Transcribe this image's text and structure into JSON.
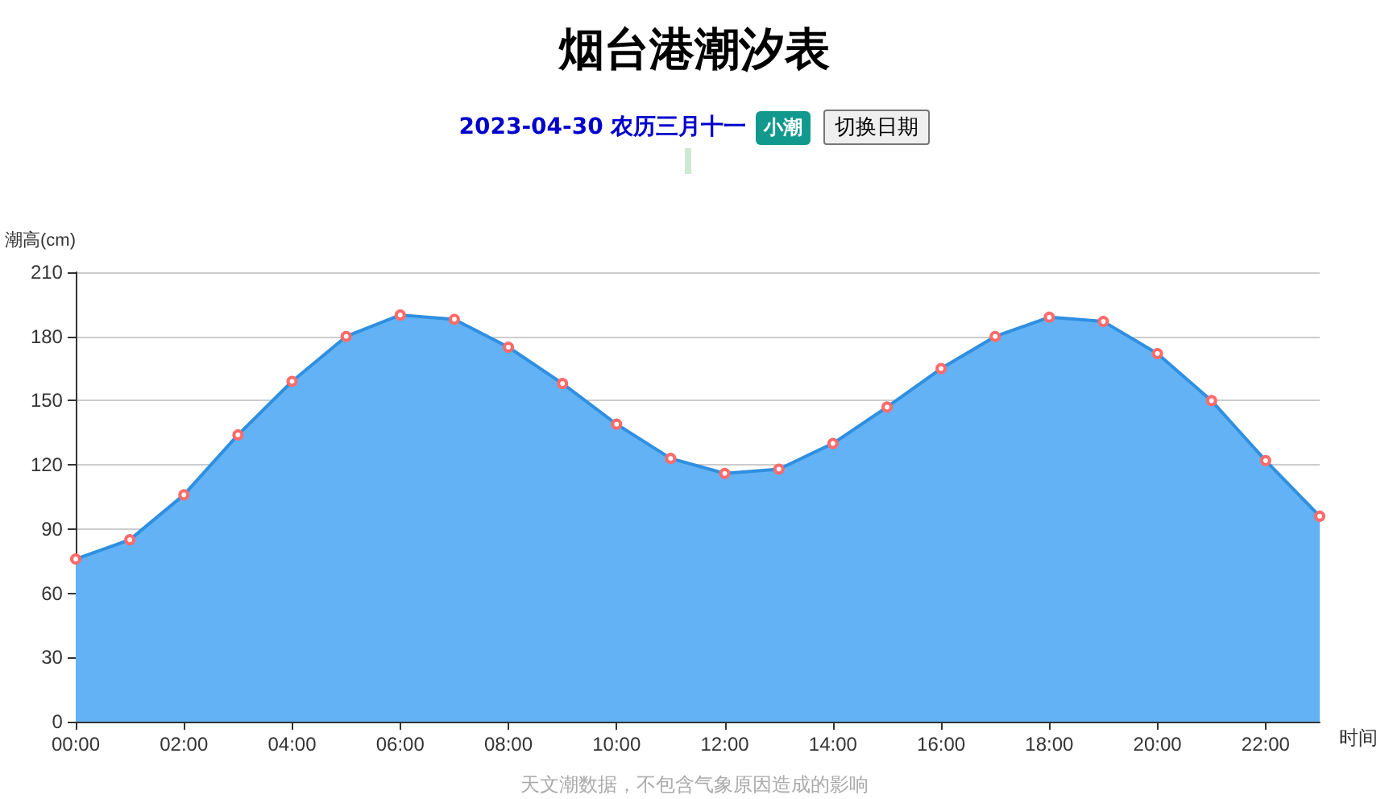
{
  "chart_data": {
    "type": "area",
    "title": "烟台港潮汐表",
    "subtitle": "2023-04-30 农历三月十一",
    "xlabel": "时间",
    "ylabel": "潮高(cm)",
    "annotations": [
      "小潮",
      "切换日期",
      "天文潮数据，不包含气象原因造成的影响"
    ],
    "categories": [
      "00:00",
      null,
      "02:00",
      null,
      "04:00",
      null,
      "06:00",
      null,
      "08:00",
      null,
      "10:00",
      null,
      "12:00",
      null,
      "14:00",
      null,
      "16:00",
      null,
      "18:00",
      null,
      "20:00",
      null,
      "22:00",
      null
    ],
    "series": [
      {
        "color": "#2f8fe0",
        "values": [
          76,
          85,
          106,
          134,
          159,
          180,
          190,
          188,
          175,
          158,
          139,
          123,
          116,
          118,
          130,
          147,
          165,
          180,
          189,
          187,
          172,
          150,
          122,
          96
        ]
      }
    ],
    "ylim": [
      0,
      210
    ],
    "yticks": [
      0,
      30,
      60,
      90,
      120,
      150,
      180,
      210
    ],
    "grid": "y",
    "marker": "circle",
    "line_style": "solid"
  }
}
